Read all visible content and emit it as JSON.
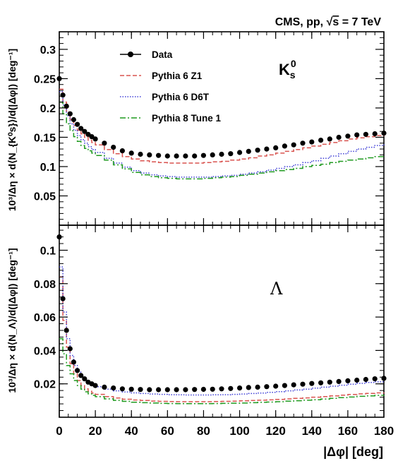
{
  "header": {
    "title_prefix": "CMS, pp, ",
    "title_sqrt": "√",
    "title_s": "s",
    "title_suffix": " = 7 TeV"
  },
  "legend": {
    "entries": [
      {
        "label": "Data",
        "style": "marker"
      },
      {
        "label": "Pythia 6 Z1",
        "style": "dashed"
      },
      {
        "label": "Pythia 6 D6T",
        "style": "dotted"
      },
      {
        "label": "Pythia 8 Tune 1",
        "style": "dashdot"
      }
    ]
  },
  "colors": {
    "data": "#000000",
    "z1": "#d9534f",
    "d6t": "#3f3fd6",
    "tune1": "#1f9a1f",
    "axis": "#000000"
  },
  "chart_data": [
    {
      "type": "line",
      "panel": "top",
      "particle_label": "K",
      "particle_sup": "0",
      "particle_sub": "s",
      "ylabel_text": "10³/Δη × d⟨N_{K⁰s}⟩/d(|Δφ|) [deg⁻¹]",
      "ylim": [
        0,
        0.33
      ],
      "yticks": [
        "0.05",
        "0.1",
        "0.15",
        "0.2",
        "0.25",
        "0.3"
      ],
      "ytick_values": [
        0.05,
        0.1,
        0.15,
        0.2,
        0.25,
        0.3
      ],
      "x": [
        0,
        2,
        4,
        6,
        8,
        10,
        12,
        14,
        16,
        18,
        20,
        25,
        30,
        35,
        40,
        45,
        50,
        55,
        60,
        65,
        70,
        75,
        80,
        85,
        90,
        95,
        100,
        105,
        110,
        115,
        120,
        125,
        130,
        135,
        140,
        145,
        150,
        155,
        160,
        165,
        170,
        175,
        180
      ],
      "series": [
        {
          "name": "Data",
          "style": "marker",
          "values": [
            0.25,
            0.222,
            0.203,
            0.19,
            0.18,
            0.172,
            0.165,
            0.16,
            0.155,
            0.151,
            0.147,
            0.14,
            0.133,
            0.127,
            0.123,
            0.121,
            0.12,
            0.119,
            0.118,
            0.118,
            0.118,
            0.118,
            0.119,
            0.12,
            0.121,
            0.122,
            0.124,
            0.126,
            0.128,
            0.13,
            0.132,
            0.135,
            0.137,
            0.14,
            0.142,
            0.145,
            0.147,
            0.15,
            0.152,
            0.154,
            0.155,
            0.156,
            0.157
          ]
        },
        {
          "name": "Pythia 6 Z1",
          "style": "dashed",
          "values": [
            0.232,
            0.21,
            0.193,
            0.18,
            0.17,
            0.162,
            0.156,
            0.15,
            0.145,
            0.141,
            0.137,
            0.129,
            0.122,
            0.117,
            0.113,
            0.11,
            0.108,
            0.107,
            0.106,
            0.106,
            0.106,
            0.106,
            0.107,
            0.108,
            0.109,
            0.111,
            0.113,
            0.115,
            0.118,
            0.12,
            0.123,
            0.126,
            0.129,
            0.132,
            0.135,
            0.138,
            0.141,
            0.144,
            0.147,
            0.149,
            0.151,
            0.153,
            0.154
          ]
        },
        {
          "name": "Pythia 6 D6T",
          "style": "dotted",
          "values": [
            0.228,
            0.205,
            0.187,
            0.173,
            0.162,
            0.153,
            0.146,
            0.14,
            0.134,
            0.129,
            0.124,
            0.114,
            0.106,
            0.099,
            0.093,
            0.089,
            0.086,
            0.084,
            0.083,
            0.082,
            0.082,
            0.082,
            0.082,
            0.083,
            0.084,
            0.085,
            0.087,
            0.089,
            0.091,
            0.094,
            0.097,
            0.1,
            0.103,
            0.107,
            0.11,
            0.114,
            0.118,
            0.122,
            0.126,
            0.13,
            0.133,
            0.136,
            0.138
          ]
        },
        {
          "name": "Pythia 8 Tune 1",
          "style": "dashdot",
          "values": [
            0.21,
            0.19,
            0.173,
            0.161,
            0.151,
            0.143,
            0.136,
            0.131,
            0.127,
            0.123,
            0.119,
            0.111,
            0.103,
            0.096,
            0.09,
            0.086,
            0.083,
            0.081,
            0.08,
            0.079,
            0.079,
            0.079,
            0.08,
            0.081,
            0.082,
            0.083,
            0.085,
            0.087,
            0.089,
            0.091,
            0.093,
            0.095,
            0.097,
            0.1,
            0.102,
            0.104,
            0.107,
            0.109,
            0.111,
            0.113,
            0.115,
            0.117,
            0.118
          ]
        }
      ]
    },
    {
      "type": "line",
      "panel": "bottom",
      "particle_label": "Λ",
      "ylabel_text": "10³/Δη × d⟨N_Λ⟩/d(|Δφ|) [deg⁻¹]",
      "ylim": [
        0,
        0.115
      ],
      "yticks": [
        "0.02",
        "0.04",
        "0.06",
        "0.08",
        "0.1"
      ],
      "ytick_values": [
        0.02,
        0.04,
        0.06,
        0.08,
        0.1
      ],
      "xlabel": "|Δφ| [deg]",
      "xlim": [
        0,
        180
      ],
      "xticks": [
        "0",
        "20",
        "40",
        "60",
        "80",
        "100",
        "120",
        "140",
        "160",
        "180"
      ],
      "xtick_values": [
        0,
        20,
        40,
        60,
        80,
        100,
        120,
        140,
        160,
        180
      ],
      "x": [
        0,
        2,
        4,
        6,
        8,
        10,
        12,
        14,
        16,
        18,
        20,
        25,
        30,
        35,
        40,
        45,
        50,
        55,
        60,
        65,
        70,
        75,
        80,
        85,
        90,
        95,
        100,
        105,
        110,
        115,
        120,
        125,
        130,
        135,
        140,
        145,
        150,
        155,
        160,
        165,
        170,
        175,
        180
      ],
      "series": [
        {
          "name": "Data",
          "style": "marker",
          "values": [
            0.108,
            0.071,
            0.052,
            0.041,
            0.033,
            0.028,
            0.025,
            0.023,
            0.021,
            0.02,
            0.019,
            0.018,
            0.0175,
            0.017,
            0.0168,
            0.0166,
            0.0165,
            0.0165,
            0.0165,
            0.0165,
            0.0165,
            0.0166,
            0.0167,
            0.0168,
            0.017,
            0.0172,
            0.0175,
            0.0178,
            0.018,
            0.0183,
            0.0186,
            0.019,
            0.0194,
            0.0198,
            0.0202,
            0.0206,
            0.021,
            0.0214,
            0.0218,
            0.0222,
            0.0226,
            0.023,
            0.0233
          ]
        },
        {
          "name": "Pythia 6 Z1",
          "style": "dashed",
          "values": [
            0.084,
            0.058,
            0.042,
            0.032,
            0.026,
            0.022,
            0.019,
            0.017,
            0.0155,
            0.0145,
            0.0137,
            0.0124,
            0.0115,
            0.0108,
            0.0103,
            0.01,
            0.0097,
            0.0095,
            0.0094,
            0.0093,
            0.0093,
            0.0093,
            0.0093,
            0.0094,
            0.0095,
            0.0096,
            0.0098,
            0.01,
            0.0102,
            0.0104,
            0.0107,
            0.011,
            0.0113,
            0.0116,
            0.012,
            0.0124,
            0.0128,
            0.0132,
            0.0136,
            0.014,
            0.0143,
            0.0146,
            0.0148
          ]
        },
        {
          "name": "Pythia 6 D6T",
          "style": "dotted",
          "values": [
            0.09,
            0.063,
            0.047,
            0.037,
            0.031,
            0.027,
            0.024,
            0.022,
            0.0205,
            0.0193,
            0.0183,
            0.0168,
            0.0158,
            0.0151,
            0.0146,
            0.0142,
            0.0139,
            0.0137,
            0.0135,
            0.0134,
            0.0133,
            0.0133,
            0.0133,
            0.0134,
            0.0135,
            0.0137,
            0.0139,
            0.0142,
            0.0145,
            0.0149,
            0.0153,
            0.0158,
            0.0163,
            0.0168,
            0.0174,
            0.018,
            0.0186,
            0.0192,
            0.0198,
            0.0203,
            0.0208,
            0.0212,
            0.0215
          ]
        },
        {
          "name": "Pythia 8 Tune 1",
          "style": "dashdot",
          "values": [
            0.047,
            0.038,
            0.031,
            0.026,
            0.022,
            0.019,
            0.0168,
            0.0152,
            0.014,
            0.0131,
            0.0123,
            0.011,
            0.0101,
            0.0095,
            0.009,
            0.0087,
            0.0085,
            0.0083,
            0.0082,
            0.0081,
            0.0081,
            0.0081,
            0.0081,
            0.0082,
            0.0083,
            0.0084,
            0.0085,
            0.0087,
            0.0089,
            0.0091,
            0.0093,
            0.0096,
            0.0099,
            0.0102,
            0.0105,
            0.0109,
            0.0113,
            0.0117,
            0.0121,
            0.0125,
            0.0128,
            0.0131,
            0.0133
          ]
        }
      ]
    }
  ]
}
